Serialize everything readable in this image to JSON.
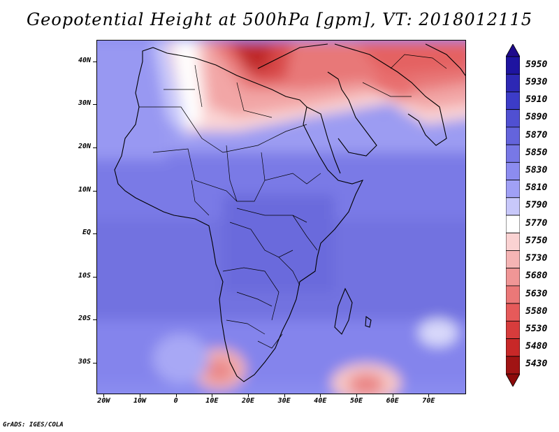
{
  "title": "Geopotential Height at 500hPa [gpm], VT: 2018012115",
  "credit": "GrADS: IGES/COLA",
  "map": {
    "variable": "Geopotential Height",
    "level": "500hPa",
    "units": "gpm",
    "valid_time": "2018012115",
    "lon_range": [
      -22,
      80
    ],
    "lat_range": [
      -37,
      45
    ],
    "lat_ticks": [
      "40N",
      "30N",
      "20N",
      "10N",
      "EQ",
      "10S",
      "20S",
      "30S"
    ],
    "lat_values": [
      40,
      30,
      20,
      10,
      0,
      -10,
      -20,
      -30
    ],
    "lon_ticks": [
      "20W",
      "10W",
      "0",
      "10E",
      "20E",
      "30E",
      "40E",
      "50E",
      "60E",
      "70E"
    ],
    "lon_values": [
      -20,
      -10,
      0,
      10,
      20,
      30,
      40,
      50,
      60,
      70
    ]
  },
  "colorbar": {
    "levels": [
      "5950",
      "5930",
      "5910",
      "5890",
      "5870",
      "5850",
      "5830",
      "5810",
      "5790",
      "5770",
      "5750",
      "5730",
      "5680",
      "5630",
      "5580",
      "5530",
      "5480",
      "5430"
    ],
    "colors": [
      "#1e14a0",
      "#2d28b4",
      "#3c3cc8",
      "#5050d2",
      "#6464dc",
      "#7878e6",
      "#8c8cf0",
      "#a0a0f5",
      "#c8c8fa",
      "#ffffff",
      "#fad2d2",
      "#f5b4b4",
      "#f09696",
      "#eb7878",
      "#e65a5a",
      "#d73c3c",
      "#c82828",
      "#a01414"
    ]
  }
}
